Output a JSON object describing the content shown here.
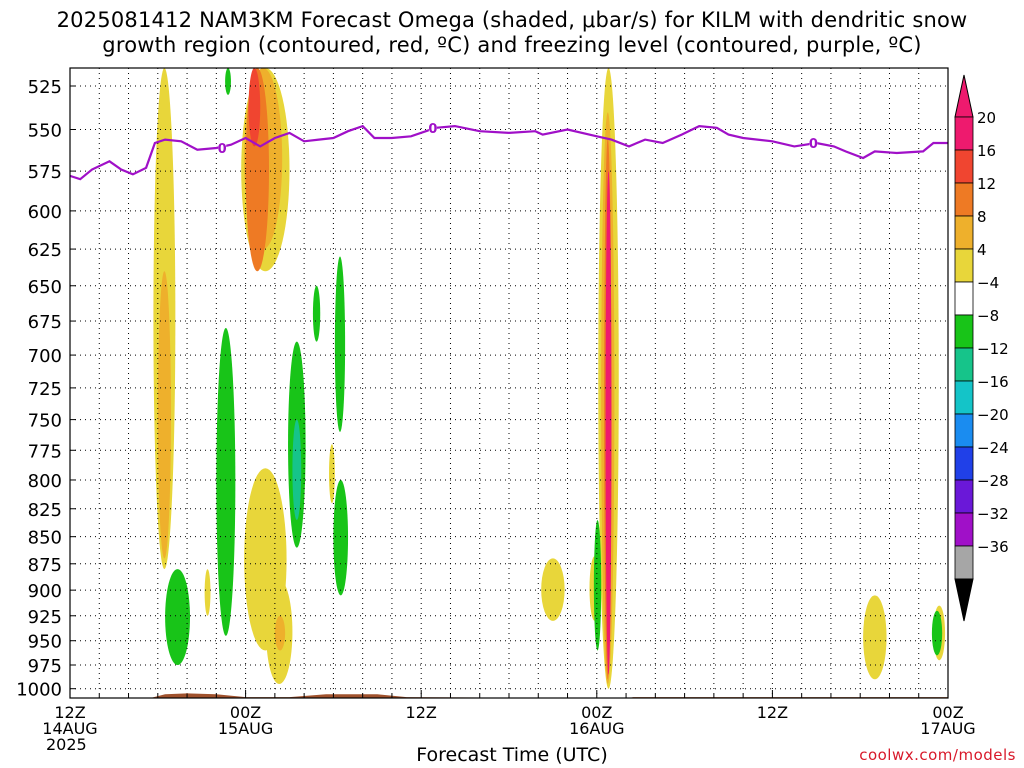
{
  "title": {
    "line1": "2025081412 NAM3KM Forecast Omega (shaded, μbar/s) for KILM with dendritic snow",
    "line2": "growth region (contoured, red, ºC) and freezing level (contoured, purple, ºC)"
  },
  "credit": "coolwx.com/models",
  "chart_data": {
    "type": "heatmap",
    "xlabel": "Forecast Time (UTC)",
    "ylabel": "",
    "x_unit": "hours since 12Z 14AUG 2025",
    "xlim": [
      0,
      60
    ],
    "ylim": [
      1010,
      515
    ],
    "y_scale": "log-pressure",
    "grid": true,
    "x_ticks": [
      {
        "h": 0,
        "lines": [
          "12Z",
          "14AUG",
          "2025"
        ]
      },
      {
        "h": 12,
        "lines": [
          "00Z",
          "15AUG"
        ]
      },
      {
        "h": 24,
        "lines": [
          "12Z"
        ]
      },
      {
        "h": 36,
        "lines": [
          "00Z",
          "16AUG"
        ]
      },
      {
        "h": 48,
        "lines": [
          "12Z"
        ]
      },
      {
        "h": 60,
        "lines": [
          "00Z",
          "17AUG"
        ]
      }
    ],
    "y_ticks": [
      525,
      550,
      575,
      600,
      625,
      650,
      675,
      700,
      725,
      750,
      775,
      800,
      825,
      850,
      875,
      900,
      925,
      950,
      975,
      1000
    ],
    "colorbar": {
      "labels": [
        "20",
        "16",
        "12",
        "8",
        "4",
        "−4",
        "−8",
        "−12",
        "−16",
        "−20",
        "−24",
        "−28",
        "−32",
        "−36"
      ],
      "colors": [
        "#ee1a6e",
        "#f04530",
        "#ee7a24",
        "#eeb02c",
        "#e8d63a",
        "#ffffff",
        "#18c418",
        "#16c48a",
        "#14c4c8",
        "#1a8cf0",
        "#2040e8",
        "#6a18d8",
        "#a010c8",
        "#a6a6a6",
        "#000000"
      ],
      "top_color": "#ee1a6e",
      "bottom_color": "#000000"
    },
    "omega_areas": [
      {
        "level": 4,
        "color": "#e8d63a",
        "x0": 5.7,
        "x1": 7.2,
        "p_top": 515,
        "p_bot": 880
      },
      {
        "level": 8,
        "color": "#eeb02c",
        "x0": 6.0,
        "x1": 6.9,
        "p_top": 640,
        "p_bot": 870
      },
      {
        "level": 4,
        "color": "#e8d63a",
        "x0": 11.7,
        "x1": 15.0,
        "p_top": 515,
        "p_bot": 640
      },
      {
        "level": 8,
        "color": "#eeb02c",
        "x0": 11.9,
        "x1": 14.5,
        "p_top": 515,
        "p_bot": 625
      },
      {
        "level": 12,
        "color": "#ee7a24",
        "x0": 12.0,
        "x1": 13.6,
        "p_top": 515,
        "p_bot": 640
      },
      {
        "level": 16,
        "color": "#f04530",
        "x0": 12.2,
        "x1": 13.0,
        "p_top": 515,
        "p_bot": 560
      },
      {
        "level": 4,
        "color": "#e8d63a",
        "x0": 11.9,
        "x1": 14.8,
        "p_top": 790,
        "p_bot": 960
      },
      {
        "level": 4,
        "color": "#e8d63a",
        "x0": 13.4,
        "x1": 15.2,
        "p_top": 890,
        "p_bot": 995
      },
      {
        "level": 8,
        "color": "#eeb02c",
        "x0": 14.0,
        "x1": 14.7,
        "p_top": 925,
        "p_bot": 960
      },
      {
        "level": 4,
        "color": "#e8d63a",
        "x0": 35.5,
        "x1": 36.2,
        "p_top": 868,
        "p_bot": 930
      },
      {
        "level": 4,
        "color": "#e8d63a",
        "x0": 36.1,
        "x1": 37.5,
        "p_top": 515,
        "p_bot": 1000
      },
      {
        "level": 8,
        "color": "#eeb02c",
        "x0": 36.3,
        "x1": 37.2,
        "p_top": 540,
        "p_bot": 995
      },
      {
        "level": 12,
        "color": "#ee7a24",
        "x0": 36.5,
        "x1": 37.0,
        "p_top": 555,
        "p_bot": 990
      },
      {
        "level": 20,
        "color": "#ee1a6e",
        "x0": 36.6,
        "x1": 37.0,
        "p_top": 575,
        "p_bot": 985
      },
      {
        "level": 4,
        "color": "#e8d63a",
        "x0": 32.2,
        "x1": 33.8,
        "p_top": 870,
        "p_bot": 930
      },
      {
        "level": 4,
        "color": "#e8d63a",
        "x0": 54.2,
        "x1": 55.8,
        "p_top": 905,
        "p_bot": 990
      },
      {
        "level": 4,
        "color": "#e8d63a",
        "x0": 59.0,
        "x1": 59.8,
        "p_top": 915,
        "p_bot": 970
      },
      {
        "level": 4,
        "color": "#e8d63a",
        "x0": 9.2,
        "x1": 9.6,
        "p_top": 880,
        "p_bot": 925
      },
      {
        "level": 4,
        "color": "#e8d63a",
        "x0": 17.7,
        "x1": 18.1,
        "p_top": 770,
        "p_bot": 820
      },
      {
        "level": -4,
        "color": "#18c418",
        "x0": 6.5,
        "x1": 8.2,
        "p_top": 880,
        "p_bot": 975
      },
      {
        "level": -4,
        "color": "#18c418",
        "x0": 10.0,
        "x1": 11.3,
        "p_top": 680,
        "p_bot": 945
      },
      {
        "level": -4,
        "color": "#18c418",
        "x0": 14.9,
        "x1": 16.1,
        "p_top": 690,
        "p_bot": 860
      },
      {
        "level": -8,
        "color": "#16c48a",
        "x0": 15.2,
        "x1": 15.8,
        "p_top": 750,
        "p_bot": 835
      },
      {
        "level": -4,
        "color": "#18c418",
        "x0": 16.6,
        "x1": 17.1,
        "p_top": 650,
        "p_bot": 690
      },
      {
        "level": -4,
        "color": "#18c418",
        "x0": 18.1,
        "x1": 18.8,
        "p_top": 630,
        "p_bot": 760
      },
      {
        "level": -4,
        "color": "#18c418",
        "x0": 18.0,
        "x1": 19.0,
        "p_top": 800,
        "p_bot": 905
      },
      {
        "level": -4,
        "color": "#18c418",
        "x0": 35.8,
        "x1": 36.3,
        "p_top": 835,
        "p_bot": 960
      },
      {
        "level": -4,
        "color": "#18c418",
        "x0": 58.9,
        "x1": 59.6,
        "p_top": 920,
        "p_bot": 965
      },
      {
        "level": -4,
        "color": "#18c418",
        "x0": 10.6,
        "x1": 11.0,
        "p_top": 515,
        "p_bot": 530
      }
    ],
    "freezing_level": {
      "label": "0",
      "color": "#a010c8",
      "points": [
        [
          0,
          578
        ],
        [
          0.7,
          580
        ],
        [
          1.5,
          574
        ],
        [
          2.7,
          569
        ],
        [
          3.5,
          574
        ],
        [
          4.3,
          577
        ],
        [
          5.2,
          573
        ],
        [
          5.8,
          558
        ],
        [
          6.5,
          556
        ],
        [
          7.6,
          557
        ],
        [
          8.7,
          562
        ],
        [
          10.0,
          561
        ],
        [
          11.0,
          559
        ],
        [
          12.0,
          555
        ],
        [
          13.0,
          560
        ],
        [
          14.0,
          555
        ],
        [
          15.0,
          552
        ],
        [
          16.0,
          557
        ],
        [
          17.0,
          556
        ],
        [
          18.0,
          555
        ],
        [
          19.0,
          551
        ],
        [
          20.0,
          548
        ],
        [
          20.8,
          555
        ],
        [
          22.0,
          555
        ],
        [
          23.3,
          554
        ],
        [
          25.0,
          549
        ],
        [
          26.3,
          548
        ],
        [
          28.0,
          551
        ],
        [
          30.0,
          552
        ],
        [
          31.8,
          551
        ],
        [
          32.3,
          553
        ],
        [
          34.0,
          550
        ],
        [
          36.0,
          554
        ],
        [
          37.0,
          556
        ],
        [
          38.2,
          560
        ],
        [
          39.3,
          556
        ],
        [
          40.5,
          558
        ],
        [
          41.8,
          553
        ],
        [
          43.0,
          548
        ],
        [
          44.2,
          549
        ],
        [
          45.0,
          553
        ],
        [
          46.0,
          555
        ],
        [
          48.0,
          557
        ],
        [
          49.5,
          560
        ],
        [
          51.0,
          558
        ],
        [
          52.2,
          560
        ],
        [
          53.0,
          563
        ],
        [
          54.2,
          567
        ],
        [
          55.0,
          563
        ],
        [
          56.5,
          564
        ],
        [
          58.3,
          563
        ],
        [
          59.0,
          558
        ],
        [
          60.0,
          558
        ]
      ],
      "labels_at": [
        [
          10.4,
          561
        ],
        [
          24.8,
          549
        ],
        [
          50.8,
          558
        ]
      ]
    },
    "terrain": {
      "color": "#a0522d",
      "surface": [
        [
          0,
          1010
        ],
        [
          5.5,
          1010
        ],
        [
          6.5,
          1006
        ],
        [
          8.0,
          1005
        ],
        [
          10.0,
          1006
        ],
        [
          12.0,
          1009
        ],
        [
          15.0,
          1009
        ],
        [
          17.5,
          1006
        ],
        [
          21.0,
          1006
        ],
        [
          23.0,
          1009
        ],
        [
          36.0,
          1010
        ],
        [
          36.8,
          1014
        ],
        [
          38.5,
          1009
        ],
        [
          60.0,
          1009
        ]
      ]
    }
  }
}
